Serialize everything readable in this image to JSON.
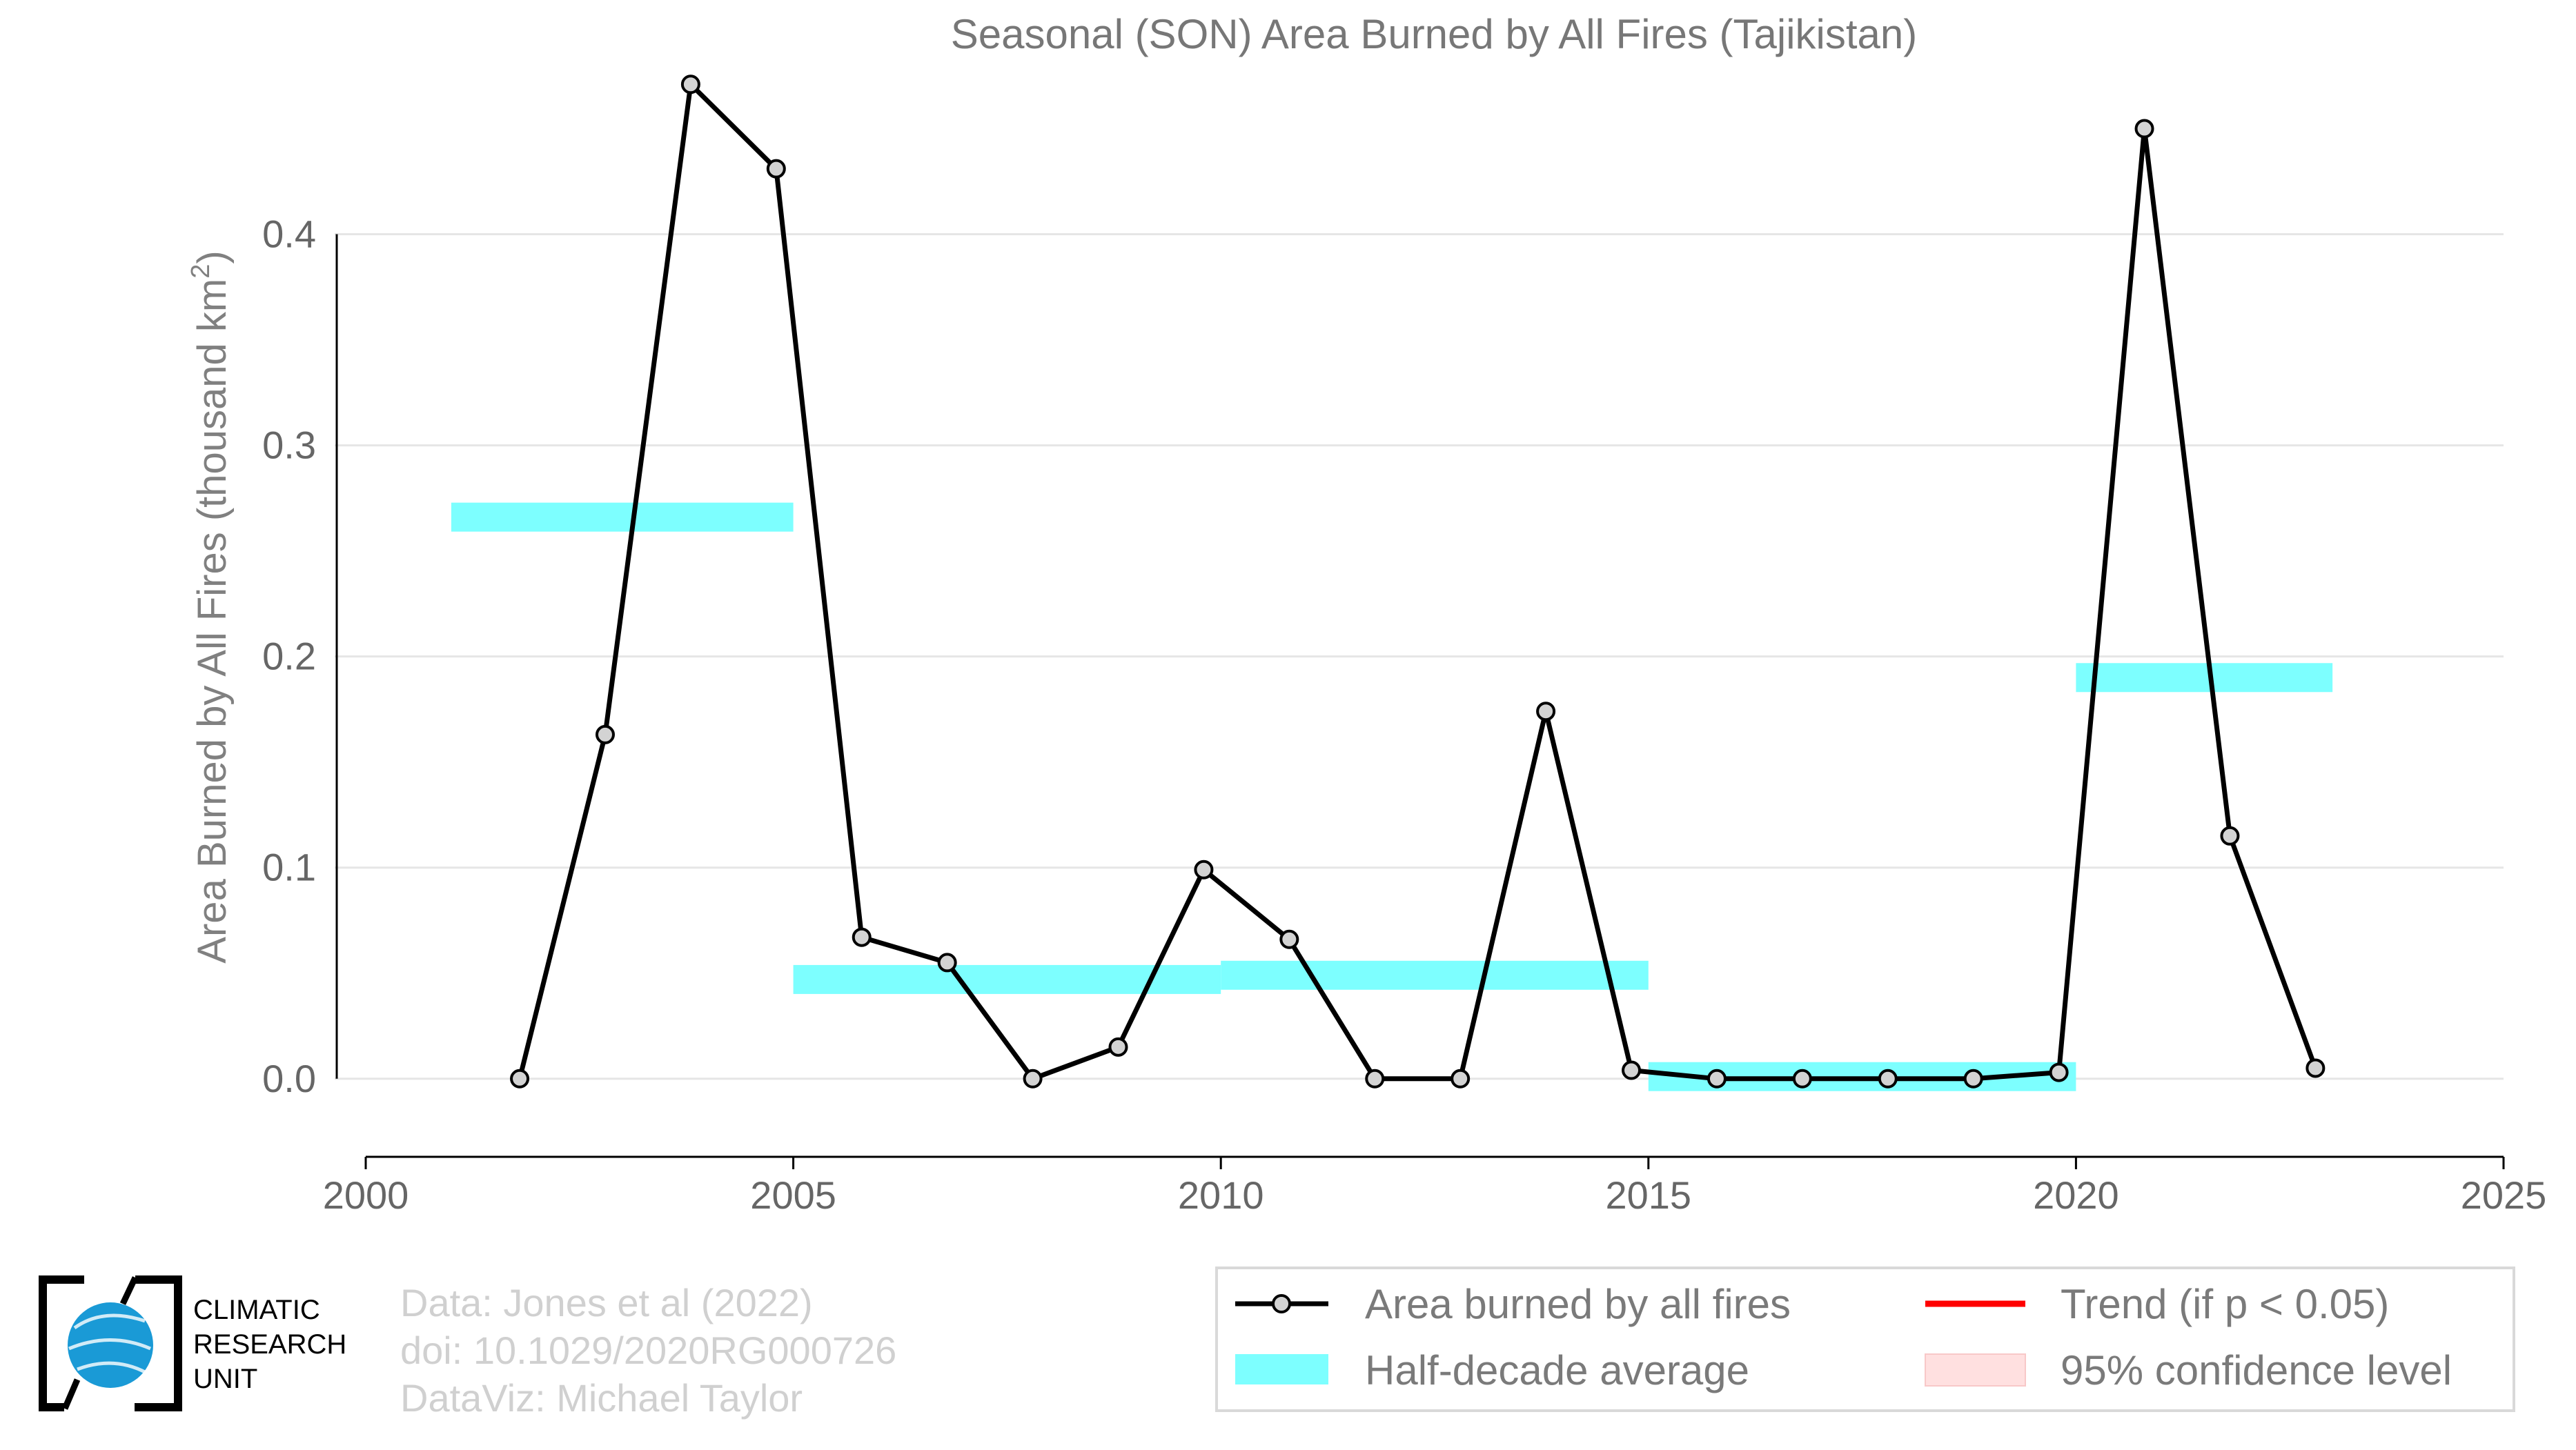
{
  "chart_data": {
    "type": "line",
    "title": "Seasonal (SON) Area Burned by All Fires (Tajikistan)",
    "ylabel": "Area Burned by All Fires (thousand km",
    "ylabel_superscript": "2",
    "ylabel_suffix": ")",
    "xlim": [
      2000,
      2025
    ],
    "ylim": [
      -0.037,
      0.475
    ],
    "x_ticks": [
      2000,
      2005,
      2010,
      2015,
      2020,
      2025
    ],
    "y_ticks": [
      0.0,
      0.1,
      0.2,
      0.3,
      0.4
    ],
    "y_tick_labels": [
      "0.0",
      "0.1",
      "0.2",
      "0.3",
      "0.4"
    ],
    "grid": true,
    "legend_position": "bottom-right",
    "series": [
      {
        "name": "Area burned by all fires",
        "color": "#000000",
        "marker_fill": "#d3d3d3",
        "x": [
          2001.8,
          2002.8,
          2003.8,
          2004.8,
          2005.8,
          2006.8,
          2007.8,
          2008.8,
          2009.8,
          2010.8,
          2011.8,
          2012.8,
          2013.8,
          2014.8,
          2015.8,
          2016.8,
          2017.8,
          2018.8,
          2019.8,
          2020.8,
          2021.8,
          2022.8
        ],
        "values": [
          0.0,
          0.163,
          0.471,
          0.431,
          0.067,
          0.055,
          0.0,
          0.015,
          0.099,
          0.066,
          0.0,
          0.0,
          0.174,
          0.004,
          0.0,
          0.0,
          0.0,
          0.0,
          0.003,
          0.45,
          0.115,
          0.005
        ]
      }
    ],
    "half_decade_averages": {
      "name": "Half-decade average",
      "color": "#7dffff",
      "segments": [
        {
          "x_start": 2001,
          "x_end": 2005,
          "value": 0.266
        },
        {
          "x_start": 2005,
          "x_end": 2010,
          "value": 0.047
        },
        {
          "x_start": 2010,
          "x_end": 2015,
          "value": 0.049
        },
        {
          "x_start": 2015,
          "x_end": 2020,
          "value": 0.001
        },
        {
          "x_start": 2020,
          "x_end": 2023,
          "value": 0.19
        }
      ]
    },
    "legend": [
      {
        "label": "Area burned by all fires",
        "symbol": "line-marker",
        "color": "#000000"
      },
      {
        "label": "Trend (if p < 0.05)",
        "symbol": "line",
        "color": "#ff0000"
      },
      {
        "label": "Half-decade average",
        "symbol": "band",
        "color": "#7dffff"
      },
      {
        "label": "95% confidence level",
        "symbol": "box",
        "color": "#ffe0e0"
      }
    ]
  },
  "credits": {
    "line1": "Data: Jones et al (2022)",
    "line2": "doi: 10.1029/2020RG000726",
    "line3": "DataViz: Michael Taylor"
  },
  "logo": {
    "line1": "CLIMATIC",
    "line2": "RESEARCH",
    "line3": "UNIT",
    "color": "#1a9ad6"
  }
}
